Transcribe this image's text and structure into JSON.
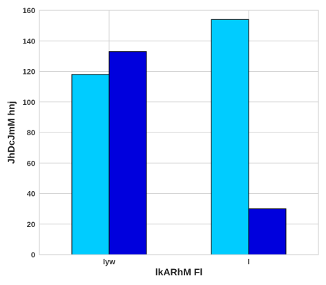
{
  "chart_data": {
    "type": "bar",
    "categories": [
      "lyw",
      "l"
    ],
    "series": [
      {
        "values": [
          118,
          154
        ],
        "color": "#00ccff"
      },
      {
        "values": [
          133,
          30
        ],
        "color": "#0000dd"
      }
    ],
    "title": "",
    "xlabel": "lkARhM Fl",
    "ylabel": "JhDcJmM hnj",
    "ylim": [
      0,
      160
    ],
    "yticks": [
      0,
      20,
      40,
      60,
      80,
      100,
      120,
      140,
      160
    ],
    "grid": true,
    "legend": "none"
  }
}
